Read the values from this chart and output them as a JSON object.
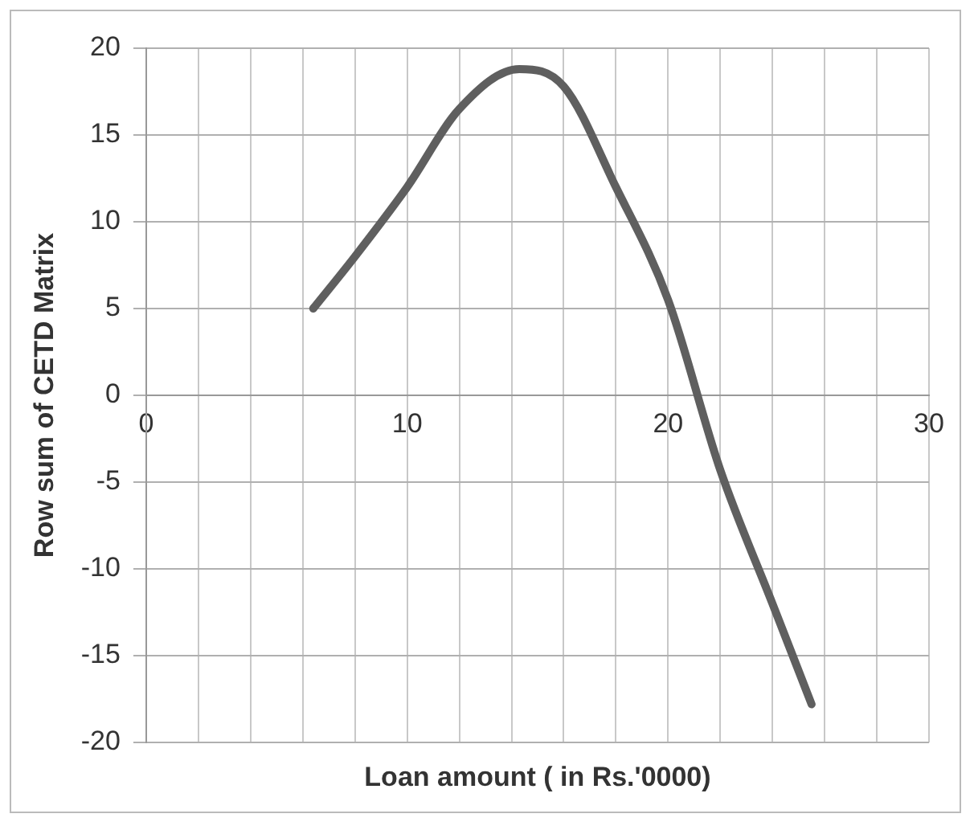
{
  "chart_data": {
    "type": "line",
    "xlabel": "Loan amount ( in Rs.'0000)",
    "ylabel": "Row sum of CETD Matrix",
    "series": [
      {
        "color": "#5f5f5f",
        "x": [
          6.4,
          8,
          10,
          12,
          14.3,
          16,
          18,
          20,
          22,
          24,
          25.5
        ],
        "values": [
          5,
          8,
          12,
          16.5,
          18.8,
          17.8,
          12,
          5.5,
          -4.3,
          -12,
          -17.8
        ]
      }
    ],
    "xlim": [
      0,
      30
    ],
    "xticks": [
      0,
      {
        "value": 2,
        "label": null
      },
      {
        "value": 4,
        "label": null
      },
      {
        "value": 6,
        "label": null
      },
      {
        "value": 8,
        "label": null
      },
      10,
      {
        "value": 12,
        "label": null
      },
      {
        "value": 14,
        "label": null
      },
      {
        "value": 16,
        "label": null
      },
      {
        "value": 18,
        "label": null
      },
      20,
      {
        "value": 22,
        "label": null
      },
      {
        "value": 24,
        "label": null
      },
      {
        "value": 26,
        "label": null
      },
      {
        "value": 28,
        "label": null
      },
      30
    ],
    "ylim": [
      -20,
      20
    ],
    "yticks": [
      -20,
      -15,
      -10,
      -5,
      0,
      5,
      10,
      15,
      20
    ],
    "grid": true,
    "legend": false,
    "marker": "none",
    "line_style": "solid"
  }
}
